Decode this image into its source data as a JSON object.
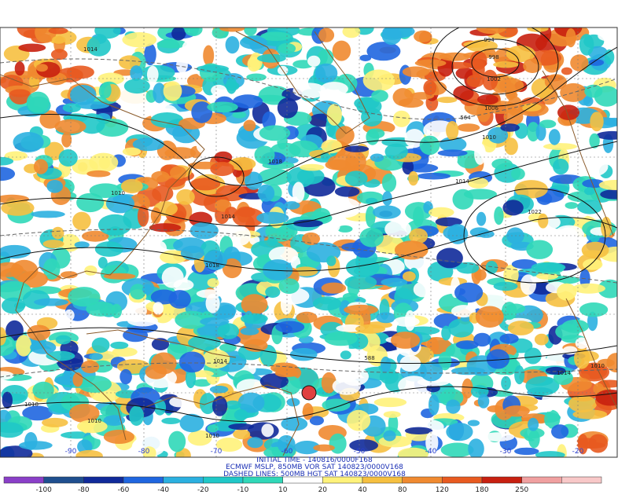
{
  "caption": [
    "INITIAL TIME - 140816/0000F168",
    "ECMWF MSLP, 850MB VOR SAT 140823/0000V168",
    "DASHED LINES: 500MB HGT SAT 140823/0000V168"
  ],
  "longitude_labels": [
    "-90",
    "-80",
    "-70",
    "-60",
    "-50",
    "-40",
    "-30",
    "-20"
  ],
  "contour_labels": [
    "1014",
    "1018",
    "1010",
    "1014",
    "1018",
    "1022",
    "994",
    "998",
    "1002",
    "1006",
    "1010",
    "1014",
    "564",
    "1014",
    "1014",
    "1010",
    "588",
    "1010",
    "1010",
    "1010"
  ],
  "colorbar": {
    "labels": [
      "-100",
      "-80",
      "-60",
      "-40",
      "-20",
      "-10",
      "10",
      "20",
      "40",
      "80",
      "120",
      "180",
      "250"
    ],
    "colors": [
      "#8a3fc8",
      "#1f4f8f",
      "#102a9a",
      "#1f66e0",
      "#2bb0e0",
      "#20c8c8",
      "#30d8b8",
      "#ffffff",
      "#fff27a",
      "#f6c040",
      "#f08a30",
      "#e85a20",
      "#c82010",
      "#f0a0a0",
      "#f8c8c8"
    ]
  }
}
